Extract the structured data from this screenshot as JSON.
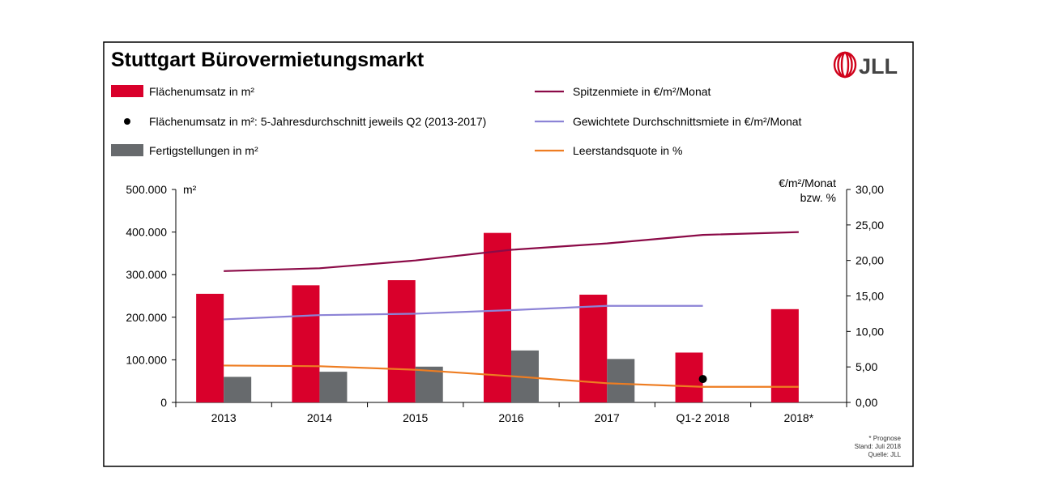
{
  "title": "Stuttgart Bürovermietungsmarkt",
  "logo": {
    "text": "JLL",
    "color": "#d0021b"
  },
  "legend": [
    {
      "label": "Flächenumsatz in m²",
      "kind": "bar",
      "color": "#d9002b"
    },
    {
      "label": "Flächenumsatz in m²: 5-Jahresdurchschnitt jeweils Q2 (2013-2017)",
      "kind": "dot",
      "color": "#000000"
    },
    {
      "label": "Fertigstellungen in m²",
      "kind": "bar",
      "color": "#676a6d"
    },
    {
      "label": "Spitzenmiete in €/m²/Monat",
      "kind": "line",
      "color": "#8b0a47"
    },
    {
      "label": "Gewichtete Durchschnittsmiete in €/m²/Monat",
      "kind": "line",
      "color": "#8c83d6"
    },
    {
      "label": "Leerstandsquote in %",
      "kind": "line",
      "color": "#ee7d22"
    }
  ],
  "footnotes": [
    "* Prognose",
    "Stand: Juli 2018",
    "Quelle: JLL"
  ],
  "chart_data": {
    "type": "bar",
    "categories": [
      "2013",
      "2014",
      "2015",
      "2016",
      "2017",
      "Q1-2 2018",
      "2018*"
    ],
    "left_axis": {
      "unit_label": "m²",
      "ylim": [
        0,
        500000
      ],
      "ticks": [
        "0",
        "100.000",
        "200.000",
        "300.000",
        "400.000",
        "500.000"
      ]
    },
    "right_axis": {
      "unit_label_1": "€/m²/Monat",
      "unit_label_2": "bzw. %",
      "ylim": [
        0,
        30
      ],
      "ticks": [
        "0,00",
        "5,00",
        "10,00",
        "15,00",
        "20,00",
        "25,00",
        "30,00"
      ]
    },
    "bar_series": [
      {
        "name": "Flächenumsatz in m²",
        "color": "#d9002b",
        "values": [
          255000,
          275000,
          287000,
          398000,
          253000,
          117000,
          219000
        ]
      },
      {
        "name": "Fertigstellungen in m²",
        "color": "#676a6d",
        "values": [
          60000,
          72000,
          84000,
          122000,
          102000,
          null,
          null
        ]
      }
    ],
    "dot_series": {
      "name": "Flächenumsatz in m²: 5-Jahresdurchschnitt jeweils Q2 (2013-2017)",
      "color": "#000000",
      "category": "Q1-2 2018",
      "value": 55000
    },
    "line_series": [
      {
        "name": "Spitzenmiete in €/m²/Monat",
        "color": "#8b0a47",
        "values": [
          18.5,
          18.9,
          20.0,
          21.5,
          22.4,
          23.6,
          24.0
        ]
      },
      {
        "name": "Gewichtete Durchschnittsmiete in €/m²/Monat",
        "color": "#8c83d6",
        "values": [
          11.7,
          12.3,
          12.5,
          13.0,
          13.6,
          13.6,
          null
        ]
      },
      {
        "name": "Leerstandsquote in %",
        "color": "#ee7d22",
        "values": [
          5.2,
          5.1,
          4.6,
          3.7,
          2.7,
          2.2,
          2.2
        ]
      }
    ],
    "grid": false
  }
}
